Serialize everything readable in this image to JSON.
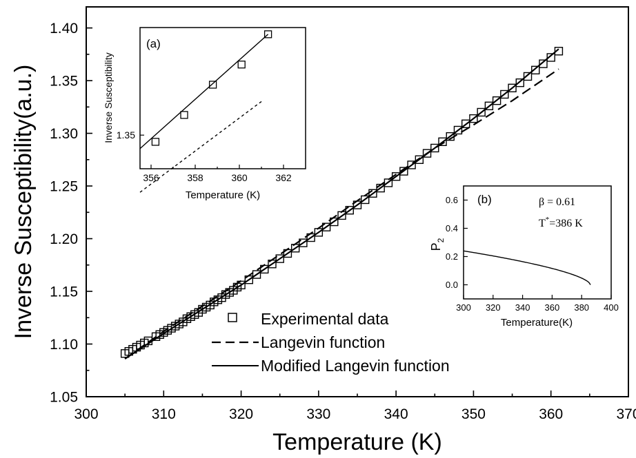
{
  "chart_data": [
    {
      "id": "main",
      "type": "scatter",
      "xlabel": "Temperature (K)",
      "ylabel": "Inverse Susceptibility(a.u.)",
      "xlim": [
        300,
        370
      ],
      "ylim": [
        1.05,
        1.42
      ],
      "xticks": [
        300,
        310,
        320,
        330,
        340,
        350,
        360,
        370
      ],
      "yticks": [
        1.05,
        1.1,
        1.15,
        1.2,
        1.25,
        1.3,
        1.35,
        1.4
      ],
      "grid": false,
      "legend_position": "bottom-center",
      "series": [
        {
          "name": "Experimental data",
          "kind": "markers",
          "marker": "open-square",
          "x": [
            305.0,
            305.5,
            306.0,
            306.5,
            307.0,
            307.5,
            308.0,
            309.0,
            309.5,
            310.0,
            310.5,
            311.0,
            311.5,
            312.0,
            312.5,
            313.0,
            313.5,
            314.0,
            314.5,
            315.0,
            315.5,
            316.0,
            316.5,
            317.0,
            317.5,
            318.0,
            318.5,
            319.0,
            319.5,
            320.0,
            321.0,
            322.0,
            323.0,
            324.0,
            325.0,
            326.0,
            327.0,
            328.0,
            329.0,
            330.0,
            331.0,
            332.0,
            333.0,
            334.0,
            335.0,
            336.0,
            337.0,
            338.0,
            339.0,
            340.0,
            341.0,
            342.0,
            343.0,
            344.0,
            345.0,
            346.0,
            347.0,
            348.0,
            349.0,
            350.0,
            351.0,
            352.0,
            353.0,
            354.0,
            355.0,
            356.0,
            357.0,
            358.0,
            359.0,
            360.0,
            361.0
          ],
          "y": [
            1.091,
            1.093,
            1.095,
            1.097,
            1.099,
            1.101,
            1.103,
            1.107,
            1.109,
            1.111,
            1.113,
            1.115,
            1.117,
            1.119,
            1.121,
            1.124,
            1.126,
            1.128,
            1.13,
            1.133,
            1.135,
            1.137,
            1.14,
            1.142,
            1.144,
            1.147,
            1.149,
            1.151,
            1.154,
            1.156,
            1.161,
            1.166,
            1.171,
            1.176,
            1.181,
            1.186,
            1.191,
            1.196,
            1.201,
            1.206,
            1.211,
            1.216,
            1.222,
            1.227,
            1.232,
            1.237,
            1.243,
            1.248,
            1.253,
            1.259,
            1.264,
            1.27,
            1.275,
            1.281,
            1.286,
            1.292,
            1.297,
            1.303,
            1.309,
            1.314,
            1.32,
            1.326,
            1.331,
            1.337,
            1.343,
            1.348,
            1.354,
            1.36,
            1.366,
            1.372,
            1.378
          ]
        },
        {
          "name": "Langevin function",
          "kind": "line",
          "dash": "dashed",
          "x": [
            305,
            310,
            315,
            320,
            325,
            330,
            335,
            340,
            345,
            350,
            355,
            361
          ],
          "y": [
            1.086,
            1.112,
            1.136,
            1.16,
            1.185,
            1.21,
            1.236,
            1.261,
            1.286,
            1.308,
            1.331,
            1.361
          ]
        },
        {
          "name": "Modified Langevin function",
          "kind": "line",
          "dash": "solid",
          "x": [
            305,
            310,
            315,
            320,
            325,
            330,
            335,
            340,
            345,
            350,
            355,
            361
          ],
          "y": [
            1.086,
            1.11,
            1.133,
            1.156,
            1.181,
            1.206,
            1.232,
            1.259,
            1.286,
            1.314,
            1.343,
            1.38
          ]
        }
      ]
    },
    {
      "id": "inset-a",
      "type": "scatter",
      "panel_label": "(a)",
      "xlabel": "Temperature (K)",
      "ylabel": "Inverse Susceptibility",
      "xlim": [
        355.5,
        363
      ],
      "ylim": [
        1.34,
        1.382
      ],
      "xticks": [
        356,
        358,
        360,
        362
      ],
      "yticks": [
        1.35
      ],
      "series": [
        {
          "name": "Experimental data",
          "kind": "markers",
          "marker": "open-square",
          "x": [
            356.2,
            357.5,
            358.8,
            360.1,
            361.3
          ],
          "y": [
            1.348,
            1.356,
            1.365,
            1.371,
            1.38
          ]
        },
        {
          "name": "Modified Langevin function",
          "kind": "line",
          "dash": "solid",
          "x": [
            355.5,
            361.3
          ],
          "y": [
            1.346,
            1.38
          ]
        },
        {
          "name": "Langevin function",
          "kind": "line",
          "dash": "dashed",
          "x": [
            355.5,
            361.0
          ],
          "y": [
            1.333,
            1.36
          ]
        }
      ]
    },
    {
      "id": "inset-b",
      "type": "line",
      "panel_label": "(b)",
      "xlabel": "Temperature(K)",
      "ylabel_main": "P",
      "ylabel_sub": "2",
      "xlim": [
        300,
        400
      ],
      "ylim": [
        -0.1,
        0.7
      ],
      "xticks": [
        300,
        320,
        340,
        360,
        380,
        400
      ],
      "yticks": [
        0.0,
        0.2,
        0.4,
        0.6
      ],
      "annotation_beta": "β = 0.61",
      "annotation_t_main": "T",
      "annotation_t_sup": "*",
      "annotation_t_rest": "=386 K",
      "series": [
        {
          "kind": "curve",
          "dash": "solid",
          "beta": 0.61,
          "Tstar": 386,
          "amplitude": 0.6,
          "x_start": 300
        }
      ]
    }
  ]
}
